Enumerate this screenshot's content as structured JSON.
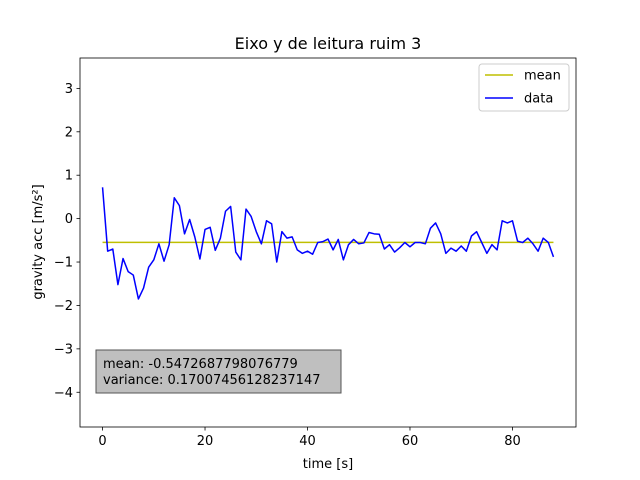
{
  "chart_data": {
    "type": "line",
    "title": "Eixo y de leitura ruim 3",
    "xlabel": "time [s]",
    "ylabel": "gravity acc [m/s²]",
    "xlim": [
      -4.4,
      92.4
    ],
    "ylim": [
      -4.8,
      3.7
    ],
    "xticks": [
      0,
      20,
      40,
      60,
      80
    ],
    "yticks": [
      3,
      2,
      1,
      0,
      -1,
      -2,
      -3,
      -4
    ],
    "grid": false,
    "legend_position": "top-right",
    "series": [
      {
        "name": "mean",
        "color": "#bfbf00",
        "x": [
          0,
          88
        ],
        "y": [
          -0.5472687798076779,
          -0.5472687798076779
        ]
      },
      {
        "name": "data",
        "color": "#0000ff",
        "x": [
          0,
          1,
          2,
          3,
          4,
          5,
          6,
          7,
          8,
          9,
          10,
          11,
          12,
          13,
          14,
          15,
          16,
          17,
          18,
          19,
          20,
          21,
          22,
          23,
          24,
          25,
          26,
          27,
          28,
          29,
          30,
          31,
          32,
          33,
          34,
          35,
          36,
          37,
          38,
          39,
          40,
          41,
          42,
          43,
          44,
          45,
          46,
          47,
          48,
          49,
          50,
          51,
          52,
          53,
          54,
          55,
          56,
          57,
          58,
          59,
          60,
          61,
          62,
          63,
          64,
          65,
          66,
          67,
          68,
          69,
          70,
          71,
          72,
          73,
          74,
          75,
          76,
          77,
          78,
          79,
          80,
          81,
          82,
          83,
          84,
          85,
          86,
          87,
          88
        ],
        "y": [
          0.72,
          -0.75,
          -0.7,
          -1.52,
          -0.92,
          -1.22,
          -1.3,
          -1.85,
          -1.6,
          -1.12,
          -0.95,
          -0.58,
          -0.98,
          -0.6,
          0.48,
          0.3,
          -0.35,
          -0.02,
          -0.42,
          -0.93,
          -0.25,
          -0.2,
          -0.73,
          -0.45,
          0.17,
          0.28,
          -0.77,
          -0.95,
          0.22,
          0.05,
          -0.3,
          -0.58,
          -0.05,
          -0.12,
          -1.0,
          -0.3,
          -0.45,
          -0.42,
          -0.72,
          -0.8,
          -0.75,
          -0.82,
          -0.55,
          -0.53,
          -0.47,
          -0.72,
          -0.48,
          -0.95,
          -0.6,
          -0.48,
          -0.58,
          -0.56,
          -0.32,
          -0.35,
          -0.36,
          -0.7,
          -0.6,
          -0.77,
          -0.67,
          -0.55,
          -0.65,
          -0.55,
          -0.55,
          -0.58,
          -0.22,
          -0.1,
          -0.35,
          -0.8,
          -0.68,
          -0.75,
          -0.63,
          -0.75,
          -0.4,
          -0.3,
          -0.55,
          -0.8,
          -0.6,
          -0.72,
          -0.05,
          -0.1,
          -0.05,
          -0.52,
          -0.55,
          -0.45,
          -0.58,
          -0.75,
          -0.45,
          -0.55,
          -0.88
        ]
      }
    ],
    "annotation": {
      "lines": [
        "mean: -0.5472687798076779",
        "variance: 0.17007456128237147"
      ],
      "background": "#bfbfbf"
    }
  }
}
